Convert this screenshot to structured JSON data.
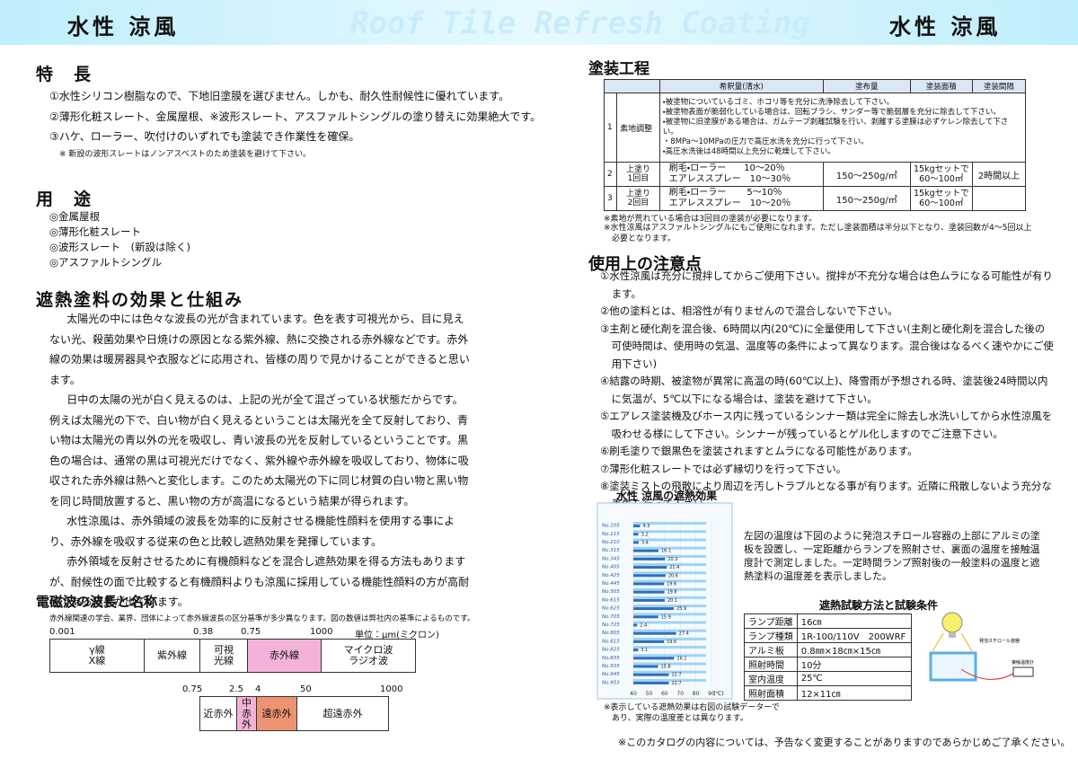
{
  "header": {
    "title_left": "水性 涼風",
    "watermark": "Roof Tile Refresh Coating",
    "title_right": "水性 涼風"
  },
  "features": {
    "heading": "特　長",
    "items": [
      "①水性シリコン樹脂なので、下地旧塗膜を選びません。しかも、耐久性耐候性に優れています。",
      "②薄形化粧スレート、金属屋根、※波形スレート、アスファルトシングルの塗り替えに効果絶大です。",
      "③ハケ、ローラー、吹付けのいずれでも塗装でき作業性を確保。"
    ],
    "note": "※ 新設の波形スレートはノンアスベストのため塗装を避けて下さい。"
  },
  "uses": {
    "heading": "用　途",
    "items": [
      "◎金属屋根",
      "◎薄形化粧スレート",
      "◎波形スレート　(新設は除く)",
      "◎アスファルトシングル"
    ]
  },
  "mechanism": {
    "heading": "遮熱塗料の効果と仕組み",
    "paragraphs": [
      "太陽光の中には色々な波長の光が含まれています。色を表す可視光から、目に見えない光、殺菌効果や日焼けの原因となる紫外線、熱に交換される赤外線などです。赤外線の効果は暖房器具や衣服などに応用され、皆様の周りで見かけることができると思います。",
      "日中の太陽の光が白く見えるのは、上記の光が全て混ざっている状態だからです。例えば太陽光の下で、白い物が白く見えるということは太陽光を全て反射しており、青い物は太陽光の青以外の光を吸収し、青い波長の光を反射しているということです。黒色の場合は、通常の黒は可視光だけでなく、紫外線や赤外線を吸収しており、物体に吸収された赤外線は熱へと変化します。このため太陽光の下に同じ材質の白い物と黒い物を同じ時間放置すると、黒い物の方が高温になるという結果が得られます。",
      "水性涼風は、赤外領域の波長を効率的に反射させる機能性顔料を使用する事により、赤外線を吸収する従来の色と比較し遮熱効果を発揮しています。",
      "赤外領域を反射させるために有機顔料などを混合し遮熱効果を得る方法もありますが、耐候性の面で比較すると有機顔料よりも涼風に採用している機能性顔料の方が高耐候である結果が出ています。"
    ]
  },
  "spectrum": {
    "heading": "電磁波の波長と名称",
    "note": "赤外線関連の学会、業界、団体によって赤外線波長の区分基準が多少異なります。図の数値は弊社内の基準によるものです。",
    "unit": "単位：μm(ミクロン)",
    "scale1": [
      "0.001",
      "0.38",
      "0.75",
      "1000"
    ],
    "bands1": [
      [
        "γ線",
        "X線"
      ],
      [
        "紫外線"
      ],
      [
        "可視",
        "光線"
      ],
      [
        "赤外線"
      ],
      [
        "マイクロ波",
        "ラジオ波"
      ]
    ],
    "scale2": [
      "0.75",
      "2.5",
      "4",
      "50",
      "1000"
    ],
    "bands2": [
      [
        "近赤外"
      ],
      [
        "中",
        "赤",
        "外"
      ],
      [
        "遠赤外"
      ],
      [
        "超遠赤外"
      ]
    ]
  },
  "process": {
    "heading": "塗装工程",
    "columns": [
      "希釈量(清水)",
      "塗布量",
      "塗装面積",
      "塗装間隔"
    ],
    "rows": [
      {
        "no": "1",
        "step": [
          "素地調整"
        ],
        "details": [
          "・被塗物についているゴミ、ホコリ等を充分に洗浄除去して下さい。",
          "・被塗物表面が脆弱化している場合は、回転ブラシ、サンダー等で脆弱層を充分に除去して下さい。",
          "・被塗物に旧塗膜がある場合は、ガムテープ剥離試験を行い、剥離する塗膜は必ずケレン除去して下さい。",
          "・8MPa～10MPaの圧力で高圧水洗を充分に行って下さい。",
          "・高圧水洗後は48時間以上充分に乾燥して下さい。"
        ]
      },
      {
        "no": "2",
        "step": [
          "上塗り",
          "1回目"
        ],
        "details": [
          "刷毛・ローラー　　10～20％",
          "エアレススプレー　10～30％"
        ],
        "amount": "150～250g/㎡",
        "area": [
          "15kgセットで",
          "60～100㎡"
        ],
        "interval": "2時間以上"
      },
      {
        "no": "3",
        "step": [
          "上塗り",
          "2回目"
        ],
        "details": [
          "刷毛・ローラー　　 5～10％",
          "エアレススプレー　10～20％"
        ],
        "amount": "150～250g/㎡",
        "area": [
          "15kgセットで",
          "60～100㎡"
        ]
      }
    ],
    "notes": [
      "※素地が荒れている場合は3回目の塗装が必要になります。",
      "※水性涼風はアスファルトシングルにもご使用になれます。ただし塗装面積は半分以下となり、塗装回数が4～5回以上必要となります。"
    ]
  },
  "precautions": {
    "heading": "使用上の注意点",
    "items": [
      "①水性涼風は充分に撹拌してからご使用下さい。撹拌が不充分な場合は色ムラになる可能性が有ります。",
      "②他の塗料とは、相溶性が有りませんので混合しないで下さい。",
      "③主剤と硬化剤を混合後、6時間以内(20℃)に全量使用して下さい(主剤と硬化剤を混合した後の可使時間は、使用時の気温、温度等の条件によって異なります。混合後はなるべく速やかにご使用下さい)",
      "④結露の時期、被塗物が異常に高温の時(60℃以上)、降雪雨が予想される時、塗装後24時間以内に気温が、5℃以下になる場合は、塗装を避けて下さい。",
      "⑤エアレス塗装機及びホース内に残っているシンナー類は完全に除去し水洗いしてから水性涼風を吸わせる様にして下さい。シンナーが残っているとゲル化しますのでご注意下さい。",
      "⑥刷毛塗りで銀黒色を塗装されますとムラになる可能性があります。",
      "⑦薄形化粧スレートでは必ず縁切りを行って下さい。",
      "⑧塗装ミストの飛散により周辺を汚しトラブルとなる事が有ります。近隣に飛散しないよう充分な養生を行って下さい。"
    ]
  },
  "heat_chart": {
    "type": "bar",
    "title": "水性 涼風の遮熱効果",
    "categories": [
      "No.105",
      "No.115",
      "No.210",
      "No.315",
      "No.345",
      "No.405",
      "No.425",
      "No.445",
      "No.505",
      "No.615",
      "No.625",
      "No.705",
      "No.725",
      "No.805",
      "No.815",
      "No.825",
      "No.835",
      "No.935",
      "No.945",
      "No.953"
    ],
    "values": [
      4.3,
      3.2,
      3.4,
      16.1,
      20.3,
      21.4,
      20.6,
      19.6,
      19.8,
      20.1,
      25.9,
      15.9,
      2.4,
      27.4,
      19.6,
      3.1,
      26.1,
      15.8,
      22.7,
      22.7
    ],
    "color": "#2f6fb8",
    "xlim": [
      40,
      90
    ],
    "xticks": [
      40,
      50,
      60,
      70,
      80,
      90
    ],
    "x_unit": "(℃)",
    "note": [
      "※表示している遮熱効果は右図の試験データーで",
      "あり、実際の温度差とは異なります。"
    ]
  },
  "heat_test": {
    "description": "左図の温度は下図のように発泡スチロール容器の上部にアルミの塗板を設置し、一定距離からランプを照射させ、裏面の温度を接触温度計で測定しました。一定時間ランプ照射後の一般塗料の温度と遮熱塗料の温度差を表示しました。",
    "heading": "遮熱試験方法と試験条件",
    "conditions": [
      [
        "ランプ距離",
        "16㎝"
      ],
      [
        "ランプ種類",
        "1R-100/110V　200WRF"
      ],
      [
        "アルミ板",
        "0.8㎜×18㎝×15㎝"
      ],
      [
        "照射時間",
        "10分"
      ],
      [
        "室内温度",
        "25℃"
      ],
      [
        "照射面積",
        "12×11㎝"
      ]
    ],
    "diagram_labels": [
      "発泡スチロール容器",
      "接触温度計"
    ]
  },
  "footer": "※このカタログの内容については、予告なく変更することがありますのであらかじめご了承ください。"
}
